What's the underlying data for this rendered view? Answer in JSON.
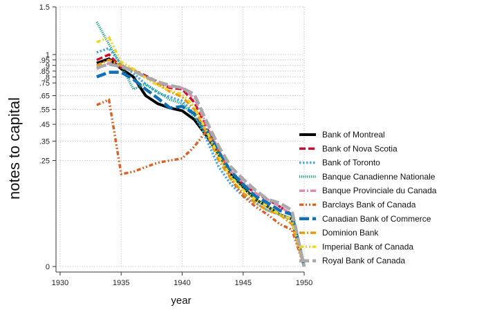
{
  "chart_data": {
    "type": "line",
    "xlabel": "year",
    "ylabel": "notes to capital",
    "xlim": [
      1930,
      1950
    ],
    "ylim": [
      0,
      1.5
    ],
    "y_scale": "sqrt",
    "grid": true,
    "legend_position": "right",
    "x_ticks": [
      1930,
      1935,
      1940,
      1945,
      1950
    ],
    "x_tick_labels": [
      "1930",
      "1935",
      "1940",
      "1945",
      "1950"
    ],
    "y_ticks": [
      0,
      0.25,
      0.35,
      0.45,
      0.55,
      0.65,
      0.75,
      0.8,
      0.85,
      0.9,
      0.95,
      1,
      1.5
    ],
    "y_tick_labels": [
      "0",
      ".25",
      ".35",
      ".45",
      ".55",
      ".65",
      ".75",
      ".8",
      ".85",
      ".9",
      ".95",
      "1",
      "1.5"
    ],
    "series": [
      {
        "name": "Bank of Montreal",
        "color": "#000000",
        "dash": "solid",
        "x": [
          1933,
          1934,
          1935,
          1936,
          1937,
          1938,
          1939,
          1940,
          1941,
          1942,
          1943,
          1944,
          1945,
          1946,
          1947,
          1948,
          1949,
          1950
        ],
        "y": [
          0.92,
          0.96,
          0.87,
          0.8,
          0.65,
          0.59,
          0.56,
          0.54,
          0.48,
          0.38,
          0.28,
          0.19,
          0.14,
          0.1,
          0.08,
          0.06,
          0.05,
          0
        ]
      },
      {
        "name": "Bank of Nova Scotia",
        "color": "#c8102e",
        "dash": "dash",
        "x": [
          1933,
          1934,
          1935,
          1936,
          1937,
          1938,
          1939,
          1940,
          1941,
          1942,
          1943,
          1944,
          1945,
          1946,
          1947,
          1948,
          1949,
          1950
        ],
        "y": [
          0.95,
          1.0,
          0.88,
          0.86,
          0.81,
          0.76,
          0.71,
          0.7,
          0.6,
          0.43,
          0.29,
          0.2,
          0.15,
          0.12,
          0.1,
          0.08,
          0.06,
          0
        ]
      },
      {
        "name": "Bank of Toronto",
        "color": "#4aa8e0",
        "dash": "dot",
        "x": [
          1933,
          1934,
          1935,
          1936,
          1937,
          1938,
          1939,
          1940,
          1941,
          1942,
          1943,
          1944,
          1945,
          1946,
          1947,
          1948,
          1949,
          1950
        ],
        "y": [
          1.02,
          1.06,
          0.91,
          0.83,
          0.74,
          0.67,
          0.64,
          0.61,
          0.52,
          0.36,
          0.22,
          0.15,
          0.11,
          0.09,
          0.07,
          0.06,
          0.05,
          0
        ]
      },
      {
        "name": "Banque Canadienne Nationale",
        "color": "#0fa37f",
        "dash": "finedot",
        "x": [
          1933,
          1934,
          1935,
          1936,
          1937,
          1938,
          1939,
          1940,
          1941,
          1942,
          1943,
          1944,
          1945,
          1946,
          1947,
          1948,
          1949,
          1950
        ],
        "y": [
          1.33,
          1.1,
          0.9,
          0.7,
          0.74,
          0.68,
          0.62,
          0.59,
          0.5,
          0.39,
          0.27,
          0.18,
          0.14,
          0.1,
          0.08,
          0.06,
          0.05,
          0
        ]
      },
      {
        "name": "Banque Provinciale du Canada",
        "color": "#d98cb3",
        "dash": "dashdot",
        "x": [
          1933,
          1934,
          1935,
          1936,
          1937,
          1938,
          1939,
          1940,
          1941,
          1942,
          1943,
          1944,
          1945,
          1946,
          1947,
          1948,
          1949,
          1950
        ],
        "y": [
          0.87,
          0.92,
          0.9,
          0.86,
          0.8,
          0.75,
          0.72,
          0.71,
          0.63,
          0.45,
          0.3,
          0.2,
          0.16,
          0.12,
          0.1,
          0.08,
          0.06,
          0
        ]
      },
      {
        "name": "Barclays Bank of Canada",
        "color": "#d9622b",
        "dash": "dashdotdot",
        "x": [
          1933,
          1934,
          1935,
          1936,
          1937,
          1938,
          1939,
          1940,
          1941,
          1942,
          1943,
          1944,
          1945,
          1946,
          1947,
          1948,
          1949,
          1950
        ],
        "y": [
          0.58,
          0.62,
          0.19,
          0.2,
          0.22,
          0.24,
          0.25,
          0.26,
          0.32,
          0.41,
          0.3,
          0.17,
          0.11,
          0.08,
          0.06,
          0.04,
          0.03,
          0
        ]
      },
      {
        "name": "Canadian Bank of Commerce",
        "color": "#1170b3",
        "dash": "longdash",
        "x": [
          1933,
          1934,
          1935,
          1936,
          1937,
          1938,
          1939,
          1940,
          1941,
          1942,
          1943,
          1944,
          1945,
          1946,
          1947,
          1948,
          1949,
          1950
        ],
        "y": [
          0.8,
          0.84,
          0.84,
          0.78,
          0.7,
          0.63,
          0.56,
          0.57,
          0.52,
          0.41,
          0.29,
          0.2,
          0.15,
          0.11,
          0.09,
          0.07,
          0.06,
          0
        ]
      },
      {
        "name": "Dominion Bank",
        "color": "#e69a12",
        "dash": "dashdot",
        "x": [
          1933,
          1934,
          1935,
          1936,
          1937,
          1938,
          1939,
          1940,
          1941,
          1942,
          1943,
          1944,
          1945,
          1946,
          1947,
          1948,
          1949,
          1950
        ],
        "y": [
          0.9,
          0.95,
          0.9,
          0.86,
          0.8,
          0.74,
          0.68,
          0.64,
          0.55,
          0.4,
          0.25,
          0.17,
          0.12,
          0.09,
          0.07,
          0.06,
          0.04,
          0
        ]
      },
      {
        "name": "Imperial Bank of Canada",
        "color": "#f2d52a",
        "dash": "dashdotdot",
        "x": [
          1933,
          1934,
          1935,
          1936,
          1937,
          1938,
          1939,
          1940,
          1941,
          1942,
          1943,
          1944,
          1945,
          1946,
          1947,
          1948,
          1949,
          1950
        ],
        "y": [
          1.12,
          1.17,
          0.93,
          0.87,
          0.79,
          0.73,
          0.69,
          0.66,
          0.57,
          0.41,
          0.27,
          0.18,
          0.13,
          0.1,
          0.08,
          0.06,
          0.05,
          0
        ]
      },
      {
        "name": "Royal Bank of Canada",
        "color": "#aaaaaa",
        "dash": "longdash",
        "x": [
          1933,
          1934,
          1935,
          1936,
          1937,
          1938,
          1939,
          1940,
          1941,
          1942,
          1943,
          1944,
          1945,
          1946,
          1947,
          1948,
          1949,
          1950
        ],
        "y": [
          0.88,
          0.91,
          0.89,
          0.85,
          0.8,
          0.76,
          0.73,
          0.71,
          0.66,
          0.47,
          0.32,
          0.22,
          0.17,
          0.13,
          0.1,
          0.09,
          0.07,
          0
        ]
      }
    ]
  }
}
